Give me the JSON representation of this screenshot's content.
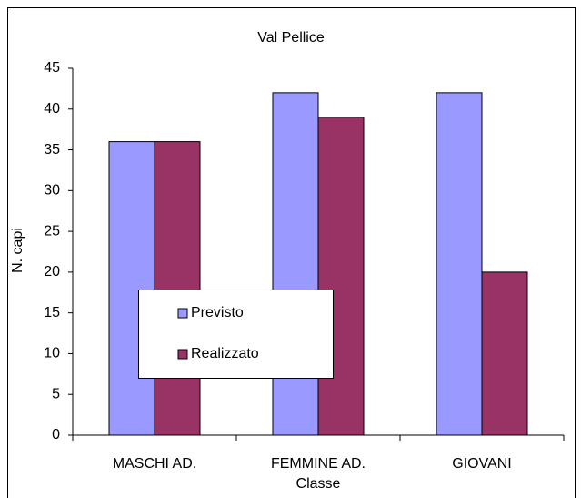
{
  "chart_data": {
    "type": "bar",
    "title": "Val Pellice",
    "x_label": "Classe",
    "y_label": "N. capi",
    "categories": [
      "MASCHI AD.",
      "FEMMINE AD.",
      "GIOVANI"
    ],
    "series": [
      {
        "name": "Previsto",
        "color": "#9999ff",
        "values": [
          36,
          42,
          42
        ]
      },
      {
        "name": "Realizzato",
        "color": "#993366",
        "values": [
          36,
          39,
          20
        ]
      }
    ],
    "ylim": [
      0,
      45
    ],
    "yticks": [
      0,
      5,
      10,
      15,
      20,
      25,
      30,
      35,
      40,
      45
    ],
    "grid": false,
    "legend": "lower-left"
  }
}
